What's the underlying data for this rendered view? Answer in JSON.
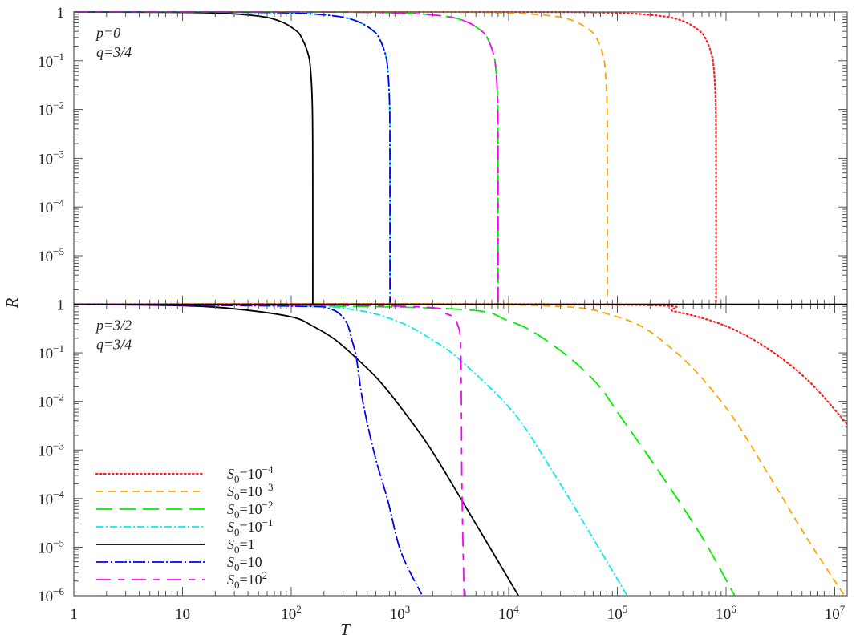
{
  "chart_data": [
    {
      "type": "line",
      "panel": "top",
      "annotations": [
        "p=0",
        "q=3/4"
      ],
      "xscale": "log",
      "yscale": "log",
      "xlim": [
        1,
        13000000.0
      ],
      "ylim": [
        1e-06,
        1
      ],
      "ylabel": "R",
      "y_ticks": [
        {
          "base": "1",
          "exp": ""
        },
        {
          "base": "10",
          "exp": "−1"
        },
        {
          "base": "10",
          "exp": "−2"
        },
        {
          "base": "10",
          "exp": "−3"
        },
        {
          "base": "10",
          "exp": "−4"
        },
        {
          "base": "10",
          "exp": "−5"
        }
      ],
      "series": [
        {
          "legend": 0,
          "color": "#ff2020",
          "style": "dotted",
          "points": [
            [
              1,
              1
            ],
            [
              8100,
              0.999
            ],
            [
              81000,
              0.968
            ],
            [
              243000,
              0.836
            ],
            [
              405000,
              0.646
            ],
            [
              567000,
              0.414
            ],
            [
              648000,
              0.284
            ],
            [
              729000,
              0.146
            ],
            [
              770000,
              0.074
            ],
            [
              802000,
              0.015
            ],
            [
              809000,
              0.0015
            ],
            [
              810000,
              1e-06
            ]
          ]
        },
        {
          "legend": 1,
          "color": "#ffa500",
          "style": "dashed",
          "points": [
            [
              1,
              1
            ],
            [
              810,
              0.999
            ],
            [
              8100,
              0.968
            ],
            [
              24300,
              0.836
            ],
            [
              40500,
              0.646
            ],
            [
              56700,
              0.414
            ],
            [
              64800,
              0.284
            ],
            [
              72900,
              0.146
            ],
            [
              77000,
              0.074
            ],
            [
              80200,
              0.015
            ],
            [
              80900,
              0.0015
            ],
            [
              81000,
              1e-06
            ]
          ]
        },
        {
          "legend": 2,
          "color": "#00ee00",
          "style": "long-dashed",
          "points": [
            [
              1,
              1
            ],
            [
              80,
              0.999
            ],
            [
              800,
              0.968
            ],
            [
              2400,
              0.836
            ],
            [
              4000,
              0.646
            ],
            [
              5600,
              0.414
            ],
            [
              6400,
              0.284
            ],
            [
              7200,
              0.146
            ],
            [
              7600,
              0.074
            ],
            [
              7920,
              0.015
            ],
            [
              7992,
              0.0015
            ],
            [
              8000,
              1e-06
            ]
          ]
        },
        {
          "legend": 3,
          "color": "#00eeee",
          "style": "dash-dot",
          "points": [
            [
              1,
              1
            ],
            [
              8.1,
              0.999
            ],
            [
              81,
              0.968
            ],
            [
              243,
              0.836
            ],
            [
              405,
              0.646
            ],
            [
              567,
              0.414
            ],
            [
              648,
              0.284
            ],
            [
              729,
              0.146
            ],
            [
              770,
              0.074
            ],
            [
              802,
              0.015
            ],
            [
              809,
              0.0015
            ],
            [
              810,
              1e-06
            ]
          ]
        },
        {
          "legend": 4,
          "color": "#000000",
          "style": "solid",
          "points": [
            [
              1,
              1
            ],
            [
              1.58,
              0.999
            ],
            [
              15.8,
              0.968
            ],
            [
              47.4,
              0.836
            ],
            [
              79,
              0.646
            ],
            [
              111,
              0.414
            ],
            [
              126,
              0.284
            ],
            [
              142,
              0.146
            ],
            [
              150,
              0.074
            ],
            [
              156,
              0.015
            ],
            [
              157.8,
              0.0015
            ],
            [
              158,
              1e-06
            ]
          ]
        },
        {
          "legend": 5,
          "color": "#0000ff",
          "style": "long-dash-dot",
          "points": [
            [
              1,
              1
            ],
            [
              8.1,
              0.999
            ],
            [
              81,
              0.968
            ],
            [
              243,
              0.836
            ],
            [
              405,
              0.646
            ],
            [
              567,
              0.414
            ],
            [
              648,
              0.284
            ],
            [
              729,
              0.146
            ],
            [
              770,
              0.074
            ],
            [
              802,
              0.015
            ],
            [
              809,
              0.0015
            ],
            [
              810,
              1e-06
            ]
          ]
        },
        {
          "legend": 6,
          "color": "#ff00ff",
          "style": "long-short-dashed",
          "points": [
            [
              1,
              1
            ],
            [
              80,
              0.999
            ],
            [
              800,
              0.968
            ],
            [
              2400,
              0.836
            ],
            [
              4000,
              0.646
            ],
            [
              5600,
              0.414
            ],
            [
              6400,
              0.284
            ],
            [
              7200,
              0.146
            ],
            [
              7600,
              0.074
            ],
            [
              7920,
              0.015
            ],
            [
              7992,
              0.0015
            ],
            [
              8000,
              1e-06
            ]
          ]
        }
      ]
    },
    {
      "type": "line",
      "panel": "bottom",
      "annotations": [
        "p=3/2",
        "q=3/4"
      ],
      "xscale": "log",
      "yscale": "log",
      "xlim": [
        1,
        13000000.0
      ],
      "ylim": [
        1e-06,
        1
      ],
      "xlabel": "T",
      "x_ticks": [
        {
          "base": "1",
          "exp": ""
        },
        {
          "base": "10",
          "exp": ""
        },
        {
          "base": "10",
          "exp": "2"
        },
        {
          "base": "10",
          "exp": "3"
        },
        {
          "base": "10",
          "exp": "4"
        },
        {
          "base": "10",
          "exp": "5"
        },
        {
          "base": "10",
          "exp": "6"
        },
        {
          "base": "10",
          "exp": "7"
        }
      ],
      "y_ticks": [
        {
          "base": "1",
          "exp": ""
        },
        {
          "base": "10",
          "exp": "−1"
        },
        {
          "base": "10",
          "exp": "−2"
        },
        {
          "base": "10",
          "exp": "−3"
        },
        {
          "base": "10",
          "exp": "−4"
        },
        {
          "base": "10",
          "exp": "−5"
        },
        {
          "base": "10",
          "exp": "−6"
        }
      ],
      "series": [
        {
          "legend": 0,
          "color": "#ff2020",
          "style": "dotted",
          "points": [
            [
              1,
              1
            ],
            [
              100000,
              0.977
            ],
            [
              339000,
              0.708
            ],
            [
              1000000,
              0.355
            ],
            [
              2450000,
              0.12
            ],
            [
              5750000,
              0.0263
            ],
            [
              12900000,
              0.00347
            ]
          ]
        },
        {
          "legend": 1,
          "color": "#ffa500",
          "style": "dashed",
          "points": [
            [
              1,
              1
            ],
            [
              10000,
              0.977
            ],
            [
              100000,
              0.55
            ],
            [
              339000,
              0.107
            ],
            [
              1000000,
              0.00741
            ],
            [
              2450000,
              0.000316
            ],
            [
              5750000,
              1.35e-05
            ],
            [
              12300000,
              1e-06
            ]
          ]
        },
        {
          "legend": 2,
          "color": "#00ee00",
          "style": "long-dashed",
          "points": [
            [
              1,
              1
            ],
            [
              2090,
              0.832
            ],
            [
              10000,
              0.457
            ],
            [
              26300,
              0.138
            ],
            [
              61700,
              0.0263
            ],
            [
              110000,
              0.00447
            ],
            [
              251000,
              0.000316
            ],
            [
              589000,
              1.74e-05
            ],
            [
              1200000,
              1e-06
            ]
          ]
        },
        {
          "legend": 3,
          "color": "#00eeee",
          "style": "dash-dot",
          "points": [
            [
              1,
              1
            ],
            [
              100,
              0.933
            ],
            [
              398,
              0.759
            ],
            [
              1000,
              0.427
            ],
            [
              2040,
              0.178
            ],
            [
              3630,
              0.0692
            ],
            [
              11200,
              0.00575
            ],
            [
              26300,
              0.000316
            ],
            [
              61700,
              1.35e-05
            ],
            [
              123000,
              1e-06
            ]
          ]
        },
        {
          "legend": 4,
          "color": "#000000",
          "style": "solid",
          "points": [
            [
              1,
              1
            ],
            [
              10,
              0.933
            ],
            [
              31.6,
              0.794
            ],
            [
              100,
              0.55
            ],
            [
              158,
              0.355
            ],
            [
              251,
              0.19
            ],
            [
              398,
              0.0776
            ],
            [
              631,
              0.0282
            ],
            [
              1000,
              0.00794
            ],
            [
              1820,
              0.00126
            ],
            [
              3630,
              0.0001
            ],
            [
              12300,
              1e-06
            ]
          ]
        },
        {
          "legend": 5,
          "color": "#0000ff",
          "style": "long-dash-dot",
          "points": [
            [
              1,
              1
            ],
            [
              100,
              0.912
            ],
            [
              224,
              0.813
            ],
            [
              316,
              0.457
            ],
            [
              363,
              0.178
            ],
            [
              398,
              0.0776
            ],
            [
              457,
              0.00955
            ],
            [
              589,
              0.000759
            ],
            [
              776,
              8.9e-05
            ],
            [
              1020,
              8.1e-06
            ],
            [
              1580,
              1.07e-06
            ]
          ]
        },
        {
          "legend": 6,
          "color": "#ff00ff",
          "style": "long-short-dashed",
          "points": [
            [
              1,
              1
            ],
            [
              1000,
              0.912
            ],
            [
              2690,
              0.631
            ],
            [
              3390,
              0.38
            ],
            [
              3630,
              0.0933
            ],
            [
              3720,
              0.00017
            ],
            [
              3890,
              1e-06
            ]
          ]
        }
      ],
      "legend_placement": "bottom-left"
    }
  ],
  "legend": [
    {
      "symbol": "S",
      "sub": "0",
      "eq": "=10",
      "sup": "−4"
    },
    {
      "symbol": "S",
      "sub": "0",
      "eq": "=10",
      "sup": "−3"
    },
    {
      "symbol": "S",
      "sub": "0",
      "eq": "=10",
      "sup": "−2"
    },
    {
      "symbol": "S",
      "sub": "0",
      "eq": "=10",
      "sup": "−1"
    },
    {
      "symbol": "S",
      "sub": "0",
      "eq": "=1",
      "sup": ""
    },
    {
      "symbol": "S",
      "sub": "0",
      "eq": "=10",
      "sup": ""
    },
    {
      "symbol": "S",
      "sub": "0",
      "eq": "=10",
      "sup": "2"
    }
  ]
}
